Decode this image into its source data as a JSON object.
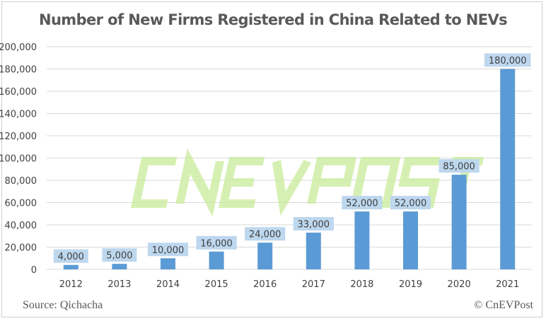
{
  "chart_data": {
    "type": "bar",
    "title": "Number of New Firms Registered in China Related to NEVs",
    "categories": [
      "2012",
      "2013",
      "2014",
      "2015",
      "2016",
      "2017",
      "2018",
      "2019",
      "2020",
      "2021"
    ],
    "values": [
      4000,
      5000,
      10000,
      16000,
      24000,
      33000,
      52000,
      52000,
      85000,
      180000
    ],
    "data_labels": [
      "4,000",
      "5,000",
      "10,000",
      "16,000",
      "24,000",
      "33,000",
      "52,000",
      "52,000",
      "85,000",
      "180,000"
    ],
    "ylim": [
      0,
      200000
    ],
    "yticks": [
      0,
      20000,
      40000,
      60000,
      80000,
      100000,
      120000,
      140000,
      160000,
      180000,
      200000
    ],
    "ytick_labels": [
      "0",
      "20,000",
      "40,000",
      "60,000",
      "80,000",
      "100,000",
      "120,000",
      "140,000",
      "160,000",
      "180,000",
      "200,000"
    ],
    "xlabel": "",
    "ylabel": "",
    "grid": true,
    "legend": "none",
    "colors": {
      "bar": "#5b9bd5",
      "label_bg": "#bdd7ee",
      "grid": "#d9d9d9"
    }
  },
  "footer": {
    "source": "Source: Qichacha",
    "credit": "© CnEVPost"
  },
  "watermark": "CNEVPOST"
}
